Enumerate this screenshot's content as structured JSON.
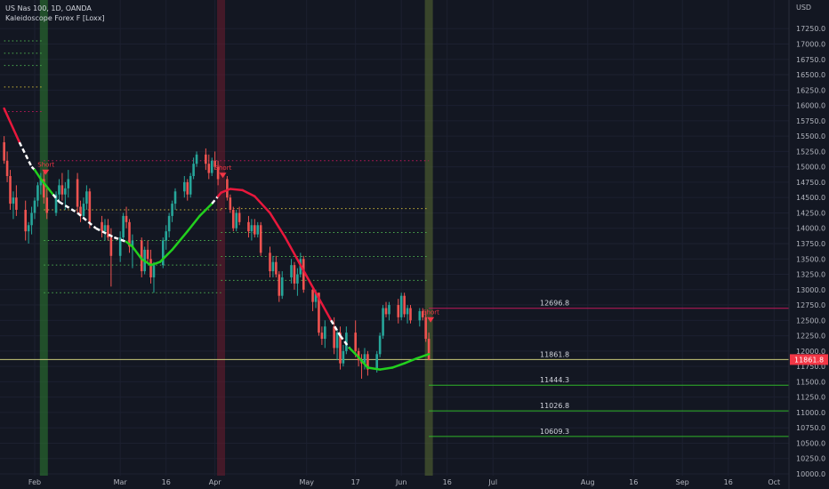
{
  "header": {
    "symbol_line": "US Nas 100, 1D, OANDA",
    "indicator_line": "Kaleidoscope Forex F [Loxx]",
    "currency": "USD"
  },
  "colors": {
    "background": "#131722",
    "up": "#26a69a",
    "down": "#ef5350",
    "trend_up": "#22d01e",
    "trend_down": "#e8183c",
    "trend_neutral": "#ffffff",
    "level_line": "#2fb52a",
    "current_line": "#c9c97a",
    "short_line": "#c2185b"
  },
  "chart_data": {
    "type": "candlestick",
    "title": "US Nas 100, 1D, OANDA",
    "ylim": [
      10000,
      17500
    ],
    "y_ticks": [
      10000,
      10250,
      10500,
      10750,
      11000,
      11250,
      11500,
      11750,
      12000,
      12250,
      12500,
      12750,
      13000,
      13250,
      13500,
      13750,
      14000,
      14250,
      14500,
      14750,
      15000,
      15250,
      15500,
      15750,
      16000,
      16250,
      16500,
      16750,
      17000,
      17250
    ],
    "y_tick_labels": [
      "10000.0",
      "10250.0",
      "10500.0",
      "10750.0",
      "11000.0",
      "11250.0",
      "11500.0",
      "11750.0",
      "12000.0",
      "12250.0",
      "12500.0",
      "12750.0",
      "13000.0",
      "13250.0",
      "13500.0",
      "13750.0",
      "14000.0",
      "14250.0",
      "14500.0",
      "14750.0",
      "15000.0",
      "15250.0",
      "15500.0",
      "15750.0",
      "16000.0",
      "16250.0",
      "16500.0",
      "16750.0",
      "17000.0",
      "17250.0"
    ],
    "x_tick_labels": [
      {
        "day": 0,
        "label": "Feb"
      },
      {
        "day": 28,
        "label": "Mar"
      },
      {
        "day": 43,
        "label": "16"
      },
      {
        "day": 59,
        "label": "Apr"
      },
      {
        "day": 89,
        "label": "May"
      },
      {
        "day": 105,
        "label": "17"
      },
      {
        "day": 120,
        "label": "Jun"
      },
      {
        "day": 135,
        "label": "16"
      },
      {
        "day": 150,
        "label": "Jul"
      },
      {
        "day": 181,
        "label": "Aug"
      },
      {
        "day": 196,
        "label": "16"
      },
      {
        "day": 212,
        "label": "Sep"
      },
      {
        "day": 227,
        "label": "16"
      },
      {
        "day": 242,
        "label": "Oct"
      }
    ],
    "candles": [
      {
        "d": -10,
        "o": 15400,
        "h": 15500,
        "l": 15050,
        "c": 15100
      },
      {
        "d": -9,
        "o": 15100,
        "h": 15250,
        "l": 14750,
        "c": 14850
      },
      {
        "d": -8,
        "o": 14850,
        "h": 14950,
        "l": 14300,
        "c": 14400
      },
      {
        "d": -7,
        "o": 14400,
        "h": 14600,
        "l": 14150,
        "c": 14500
      },
      {
        "d": -6,
        "o": 14500,
        "h": 14700,
        "l": 14200,
        "c": 14300
      },
      {
        "d": -3,
        "o": 14300,
        "h": 14450,
        "l": 13800,
        "c": 13950
      },
      {
        "d": -2,
        "o": 13950,
        "h": 14100,
        "l": 13750,
        "c": 14050
      },
      {
        "d": -1,
        "o": 14050,
        "h": 14350,
        "l": 13900,
        "c": 14250
      },
      {
        "d": 0,
        "o": 14250,
        "h": 14500,
        "l": 14150,
        "c": 14450
      },
      {
        "d": 1,
        "o": 14450,
        "h": 14750,
        "l": 14350,
        "c": 14700
      },
      {
        "d": 2,
        "o": 14700,
        "h": 14900,
        "l": 14550,
        "c": 14800
      },
      {
        "d": 3,
        "o": 14800,
        "h": 14950,
        "l": 14400,
        "c": 14500
      },
      {
        "d": 4,
        "o": 14500,
        "h": 14650,
        "l": 14150,
        "c": 14250
      },
      {
        "d": 7,
        "o": 14250,
        "h": 14600,
        "l": 14200,
        "c": 14550
      },
      {
        "d": 8,
        "o": 14550,
        "h": 14800,
        "l": 14450,
        "c": 14700
      },
      {
        "d": 9,
        "o": 14700,
        "h": 14900,
        "l": 14450,
        "c": 14550
      },
      {
        "d": 10,
        "o": 14550,
        "h": 14750,
        "l": 14300,
        "c": 14650
      },
      {
        "d": 11,
        "o": 14650,
        "h": 14950,
        "l": 14500,
        "c": 14800
      },
      {
        "d": 14,
        "o": 14800,
        "h": 14900,
        "l": 14250,
        "c": 14350
      },
      {
        "d": 15,
        "o": 14350,
        "h": 14450,
        "l": 14100,
        "c": 14200
      },
      {
        "d": 16,
        "o": 14200,
        "h": 14500,
        "l": 14150,
        "c": 14400
      },
      {
        "d": 17,
        "o": 14400,
        "h": 14700,
        "l": 14300,
        "c": 14600
      },
      {
        "d": 18,
        "o": 14600,
        "h": 14650,
        "l": 14000,
        "c": 14100
      },
      {
        "d": 22,
        "o": 14100,
        "h": 14200,
        "l": 13850,
        "c": 13950
      },
      {
        "d": 23,
        "o": 13950,
        "h": 14150,
        "l": 13800,
        "c": 14050
      },
      {
        "d": 24,
        "o": 14050,
        "h": 14150,
        "l": 13800,
        "c": 13850
      },
      {
        "d": 25,
        "o": 13850,
        "h": 14000,
        "l": 13050,
        "c": 13550
      },
      {
        "d": 28,
        "o": 13550,
        "h": 13950,
        "l": 13450,
        "c": 13850
      },
      {
        "d": 29,
        "o": 13850,
        "h": 14250,
        "l": 13800,
        "c": 14200
      },
      {
        "d": 30,
        "o": 14200,
        "h": 14350,
        "l": 14000,
        "c": 14100
      },
      {
        "d": 31,
        "o": 14100,
        "h": 14150,
        "l": 13600,
        "c": 13700
      },
      {
        "d": 32,
        "o": 13700,
        "h": 13900,
        "l": 13350,
        "c": 13800
      },
      {
        "d": 35,
        "o": 13800,
        "h": 13850,
        "l": 13200,
        "c": 13300
      },
      {
        "d": 36,
        "o": 13300,
        "h": 13700,
        "l": 13250,
        "c": 13650
      },
      {
        "d": 37,
        "o": 13650,
        "h": 13800,
        "l": 13450,
        "c": 13500
      },
      {
        "d": 38,
        "o": 13500,
        "h": 13650,
        "l": 13100,
        "c": 13200
      },
      {
        "d": 39,
        "o": 13200,
        "h": 13450,
        "l": 12950,
        "c": 13400
      },
      {
        "d": 42,
        "o": 13400,
        "h": 13850,
        "l": 13350,
        "c": 13800
      },
      {
        "d": 43,
        "o": 13800,
        "h": 14050,
        "l": 13650,
        "c": 13950
      },
      {
        "d": 44,
        "o": 13950,
        "h": 14250,
        "l": 13850,
        "c": 14200
      },
      {
        "d": 45,
        "o": 14200,
        "h": 14450,
        "l": 14100,
        "c": 14400
      },
      {
        "d": 46,
        "o": 14400,
        "h": 14650,
        "l": 14300,
        "c": 14600
      },
      {
        "d": 49,
        "o": 14600,
        "h": 14850,
        "l": 14500,
        "c": 14750
      },
      {
        "d": 50,
        "o": 14750,
        "h": 14800,
        "l": 14450,
        "c": 14550
      },
      {
        "d": 51,
        "o": 14550,
        "h": 14900,
        "l": 14500,
        "c": 14850
      },
      {
        "d": 52,
        "o": 14850,
        "h": 15150,
        "l": 14800,
        "c": 15050
      },
      {
        "d": 53,
        "o": 15050,
        "h": 15250,
        "l": 15000,
        "c": 15200
      },
      {
        "d": 56,
        "o": 15200,
        "h": 15300,
        "l": 14950,
        "c": 15050
      },
      {
        "d": 57,
        "o": 15050,
        "h": 15200,
        "l": 14800,
        "c": 14900
      },
      {
        "d": 58,
        "o": 14900,
        "h": 15150,
        "l": 14850,
        "c": 15100
      },
      {
        "d": 59,
        "o": 15100,
        "h": 15250,
        "l": 14950,
        "c": 15000
      },
      {
        "d": 60,
        "o": 15000,
        "h": 15100,
        "l": 14700,
        "c": 14800
      },
      {
        "d": 63,
        "o": 14800,
        "h": 14850,
        "l": 14450,
        "c": 14500
      },
      {
        "d": 64,
        "o": 14500,
        "h": 14550,
        "l": 14250,
        "c": 14300
      },
      {
        "d": 65,
        "o": 14300,
        "h": 14350,
        "l": 13950,
        "c": 14000
      },
      {
        "d": 66,
        "o": 14000,
        "h": 14300,
        "l": 13950,
        "c": 14250
      },
      {
        "d": 67,
        "o": 14250,
        "h": 14350,
        "l": 14050,
        "c": 14100
      },
      {
        "d": 70,
        "o": 14100,
        "h": 14200,
        "l": 13850,
        "c": 13950
      },
      {
        "d": 71,
        "o": 13950,
        "h": 14150,
        "l": 13800,
        "c": 14050
      },
      {
        "d": 72,
        "o": 14050,
        "h": 14150,
        "l": 13850,
        "c": 13900
      },
      {
        "d": 73,
        "o": 13900,
        "h": 14100,
        "l": 13850,
        "c": 14050
      },
      {
        "d": 74,
        "o": 14050,
        "h": 14100,
        "l": 13550,
        "c": 13600
      },
      {
        "d": 77,
        "o": 13600,
        "h": 13700,
        "l": 13200,
        "c": 13300
      },
      {
        "d": 78,
        "o": 13300,
        "h": 13550,
        "l": 13200,
        "c": 13450
      },
      {
        "d": 79,
        "o": 13450,
        "h": 13550,
        "l": 13200,
        "c": 13250
      },
      {
        "d": 80,
        "o": 13250,
        "h": 13300,
        "l": 12800,
        "c": 12900
      },
      {
        "d": 81,
        "o": 12900,
        "h": 13300,
        "l": 12850,
        "c": 13200
      },
      {
        "d": 84,
        "o": 13200,
        "h": 13500,
        "l": 13100,
        "c": 13400
      },
      {
        "d": 85,
        "o": 13400,
        "h": 13450,
        "l": 13000,
        "c": 13100
      },
      {
        "d": 86,
        "o": 13100,
        "h": 13350,
        "l": 12900,
        "c": 13250
      },
      {
        "d": 87,
        "o": 13250,
        "h": 13600,
        "l": 13200,
        "c": 13500
      },
      {
        "d": 88,
        "o": 13500,
        "h": 13550,
        "l": 12950,
        "c": 13000
      },
      {
        "d": 91,
        "o": 13000,
        "h": 13050,
        "l": 12650,
        "c": 12800
      },
      {
        "d": 92,
        "o": 12800,
        "h": 13000,
        "l": 12700,
        "c": 12950
      },
      {
        "d": 93,
        "o": 12950,
        "h": 12950,
        "l": 12250,
        "c": 12300
      },
      {
        "d": 94,
        "o": 12300,
        "h": 12400,
        "l": 12100,
        "c": 12200
      },
      {
        "d": 95,
        "o": 12200,
        "h": 12500,
        "l": 12050,
        "c": 12400
      },
      {
        "d": 98,
        "o": 12400,
        "h": 12550,
        "l": 11950,
        "c": 12050
      },
      {
        "d": 99,
        "o": 12050,
        "h": 12350,
        "l": 11850,
        "c": 12300
      },
      {
        "d": 100,
        "o": 12300,
        "h": 12400,
        "l": 11700,
        "c": 11800
      },
      {
        "d": 101,
        "o": 11800,
        "h": 12100,
        "l": 11750,
        "c": 12000
      },
      {
        "d": 102,
        "o": 12000,
        "h": 12400,
        "l": 11950,
        "c": 12300
      },
      {
        "d": 105,
        "o": 12300,
        "h": 12500,
        "l": 11900,
        "c": 12000
      },
      {
        "d": 106,
        "o": 12000,
        "h": 12050,
        "l": 11750,
        "c": 11850
      },
      {
        "d": 107,
        "o": 11850,
        "h": 11950,
        "l": 11550,
        "c": 11800
      },
      {
        "d": 108,
        "o": 11800,
        "h": 12050,
        "l": 11700,
        "c": 11950
      },
      {
        "d": 109,
        "o": 11950,
        "h": 12000,
        "l": 11600,
        "c": 11700
      },
      {
        "d": 112,
        "o": 11700,
        "h": 12000,
        "l": 11650,
        "c": 11950
      },
      {
        "d": 113,
        "o": 11950,
        "h": 12300,
        "l": 11900,
        "c": 12250
      },
      {
        "d": 114,
        "o": 12250,
        "h": 12750,
        "l": 12200,
        "c": 12700
      },
      {
        "d": 115,
        "o": 12700,
        "h": 12800,
        "l": 12550,
        "c": 12600
      },
      {
        "d": 116,
        "o": 12600,
        "h": 12800,
        "l": 12500,
        "c": 12750
      },
      {
        "d": 119,
        "o": 12750,
        "h": 12850,
        "l": 12450,
        "c": 12550
      },
      {
        "d": 120,
        "o": 12550,
        "h": 12950,
        "l": 12500,
        "c": 12900
      },
      {
        "d": 121,
        "o": 12900,
        "h": 12950,
        "l": 12550,
        "c": 12600
      },
      {
        "d": 122,
        "o": 12600,
        "h": 12750,
        "l": 12450,
        "c": 12700
      },
      {
        "d": 123,
        "o": 12700,
        "h": 12750,
        "l": 12450,
        "c": 12500
      },
      {
        "d": 126,
        "o": 12500,
        "h": 12700,
        "l": 12400,
        "c": 12650
      },
      {
        "d": 127,
        "o": 12650,
        "h": 12700,
        "l": 12500,
        "c": 12550
      },
      {
        "d": 128,
        "o": 12550,
        "h": 12650,
        "l": 12150,
        "c": 12200
      },
      {
        "d": 129,
        "o": 12200,
        "h": 12300,
        "l": 11850,
        "c": 11862
      }
    ],
    "trend_line": [
      {
        "d": -10,
        "y": 15950,
        "s": "down"
      },
      {
        "d": -5,
        "y": 15400,
        "s": "down"
      },
      {
        "d": -1,
        "y": 15000,
        "s": "neutral"
      },
      {
        "d": 0,
        "y": 14950,
        "s": "neutral"
      },
      {
        "d": 2,
        "y": 14800,
        "s": "up"
      },
      {
        "d": 6,
        "y": 14550,
        "s": "up"
      },
      {
        "d": 8,
        "y": 14430,
        "s": "neutral"
      },
      {
        "d": 14,
        "y": 14250,
        "s": "neutral"
      },
      {
        "d": 20,
        "y": 14000,
        "s": "neutral"
      },
      {
        "d": 26,
        "y": 13850,
        "s": "neutral"
      },
      {
        "d": 30,
        "y": 13780,
        "s": "neutral"
      },
      {
        "d": 32,
        "y": 13700,
        "s": "up"
      },
      {
        "d": 35,
        "y": 13500,
        "s": "up"
      },
      {
        "d": 38,
        "y": 13400,
        "s": "up"
      },
      {
        "d": 41,
        "y": 13450,
        "s": "up"
      },
      {
        "d": 45,
        "y": 13650,
        "s": "up"
      },
      {
        "d": 50,
        "y": 13950,
        "s": "up"
      },
      {
        "d": 54,
        "y": 14200,
        "s": "up"
      },
      {
        "d": 58,
        "y": 14400,
        "s": "up"
      },
      {
        "d": 60,
        "y": 14520,
        "s": "neutral"
      },
      {
        "d": 61,
        "y": 14580,
        "s": "down"
      },
      {
        "d": 64,
        "y": 14640,
        "s": "down"
      },
      {
        "d": 68,
        "y": 14620,
        "s": "down"
      },
      {
        "d": 72,
        "y": 14520,
        "s": "down"
      },
      {
        "d": 77,
        "y": 14250,
        "s": "down"
      },
      {
        "d": 82,
        "y": 13850,
        "s": "down"
      },
      {
        "d": 87,
        "y": 13400,
        "s": "down"
      },
      {
        "d": 92,
        "y": 12950,
        "s": "down"
      },
      {
        "d": 97,
        "y": 12500,
        "s": "down"
      },
      {
        "d": 100,
        "y": 12250,
        "s": "neutral"
      },
      {
        "d": 103,
        "y": 12050,
        "s": "neutral"
      },
      {
        "d": 106,
        "y": 11900,
        "s": "up"
      },
      {
        "d": 109,
        "y": 11730,
        "s": "up"
      },
      {
        "d": 113,
        "y": 11700,
        "s": "up"
      },
      {
        "d": 117,
        "y": 11730,
        "s": "up"
      },
      {
        "d": 121,
        "y": 11800,
        "s": "up"
      },
      {
        "d": 125,
        "y": 11880,
        "s": "up"
      },
      {
        "d": 129,
        "y": 11950,
        "s": "up"
      }
    ],
    "signals": [
      {
        "d": 3,
        "label": "Short",
        "level": 15100
      },
      {
        "d": 61,
        "label": "Short",
        "level": 15050
      },
      {
        "d": 129,
        "label": "Short",
        "level": 12697
      }
    ],
    "vertical_bands": [
      {
        "d": 3,
        "color": "#2e7d32"
      },
      {
        "d": 61,
        "color": "#6d1b2e"
      },
      {
        "d": 129,
        "color": "#5a6b33"
      }
    ],
    "dotted_levels": [
      {
        "d0": -10,
        "d1": 3,
        "y": 17050,
        "color": "#4caf50"
      },
      {
        "d0": -10,
        "d1": 3,
        "y": 16850,
        "color": "#4caf50"
      },
      {
        "d0": -10,
        "d1": 3,
        "y": 16650,
        "color": "#4caf50"
      },
      {
        "d0": -10,
        "d1": 3,
        "y": 16300,
        "color": "#c9b33a"
      },
      {
        "d0": -10,
        "d1": 3,
        "y": 15900,
        "color": "#c2185b"
      },
      {
        "d0": 3,
        "d1": 129,
        "y": 15100,
        "color": "#c2185b"
      },
      {
        "d0": 3,
        "d1": 61,
        "y": 14300,
        "color": "#c9b33a"
      },
      {
        "d0": 3,
        "d1": 61,
        "y": 13800,
        "color": "#4caf50"
      },
      {
        "d0": 3,
        "d1": 61,
        "y": 13400,
        "color": "#4caf50"
      },
      {
        "d0": 3,
        "d1": 61,
        "y": 12950,
        "color": "#4caf50"
      },
      {
        "d0": 61,
        "d1": 129,
        "y": 14320,
        "color": "#c9b33a"
      },
      {
        "d0": 61,
        "d1": 129,
        "y": 13930,
        "color": "#4caf50"
      },
      {
        "d0": 61,
        "d1": 129,
        "y": 13540,
        "color": "#4caf50"
      },
      {
        "d0": 61,
        "d1": 129,
        "y": 13150,
        "color": "#4caf50"
      }
    ],
    "levels": [
      {
        "value": 12696.8,
        "label": "12696.8",
        "type": "short"
      },
      {
        "value": 11861.8,
        "label": "11861.8",
        "type": "current"
      },
      {
        "value": 11444.3,
        "label": "11444.3",
        "type": "target"
      },
      {
        "value": 11026.8,
        "label": "11026.8",
        "type": "target"
      },
      {
        "value": 10609.3,
        "label": "10609.3",
        "type": "target"
      }
    ],
    "last_price": {
      "value": 11861.8,
      "label": "11861.8"
    }
  }
}
